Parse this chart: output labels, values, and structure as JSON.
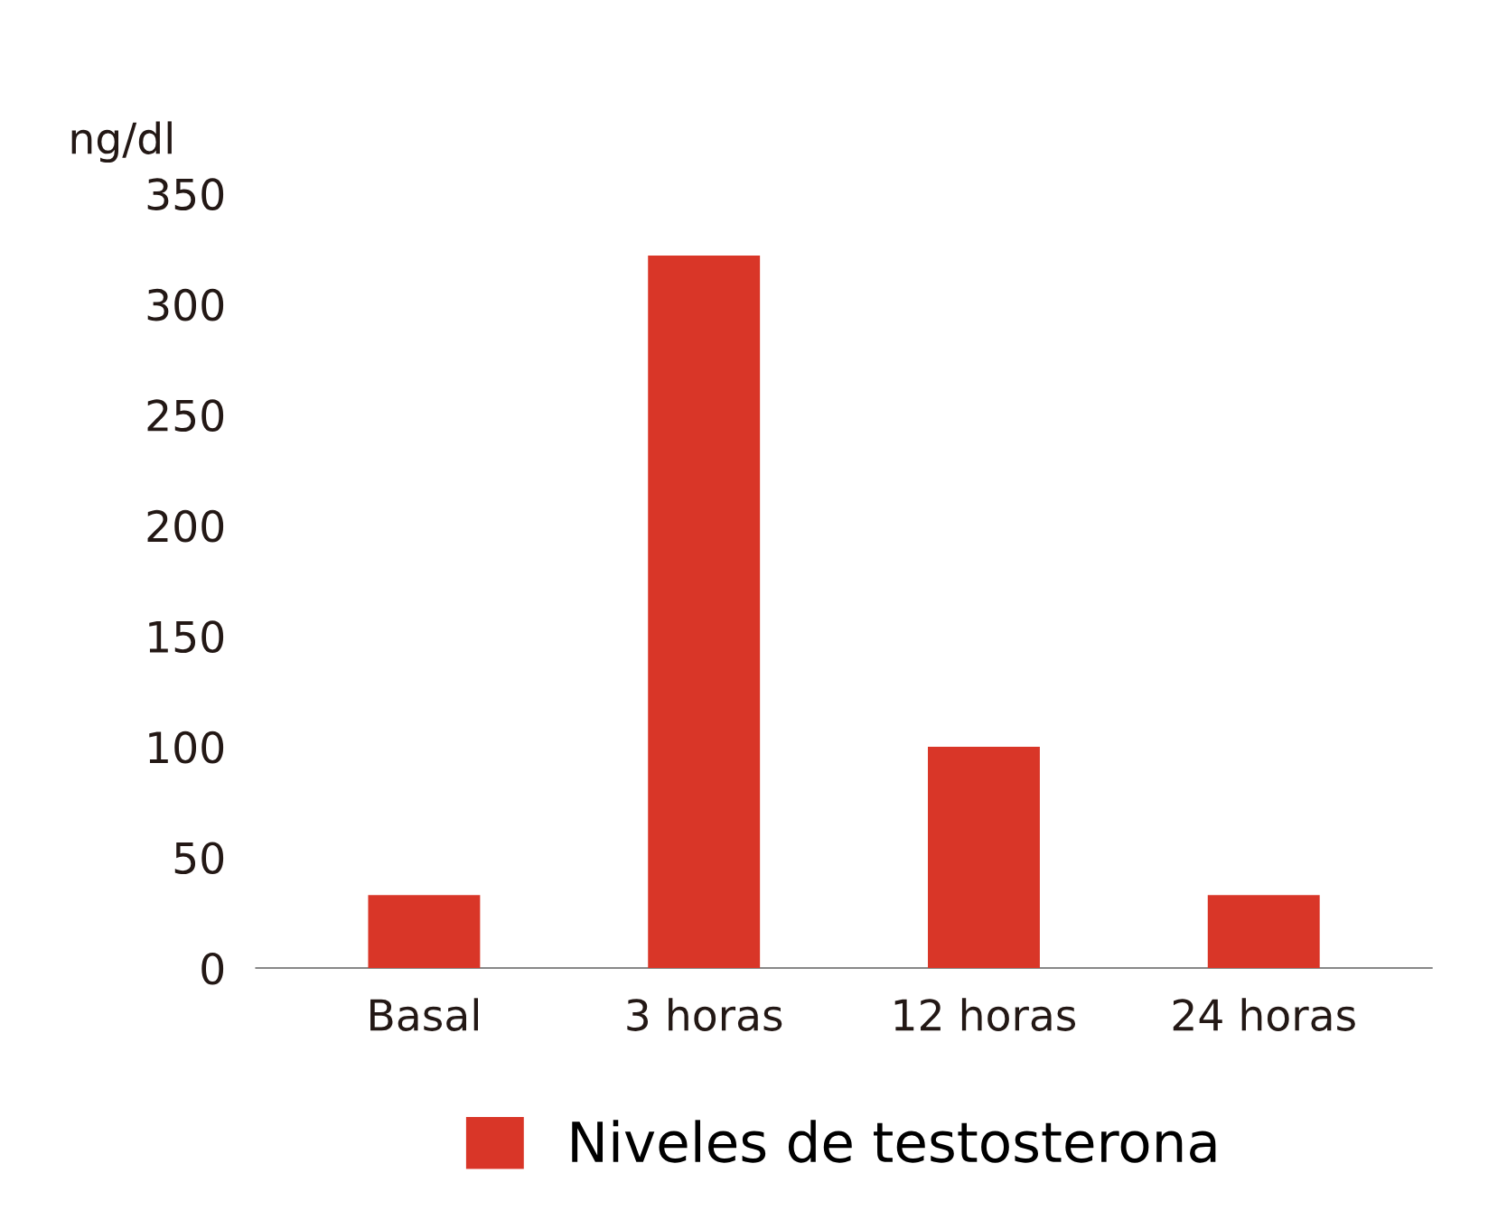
{
  "chart_data": {
    "type": "bar",
    "ylabel": "ng/dl",
    "categories": [
      "Basal",
      "3 horas",
      "12 horas",
      "24 horas"
    ],
    "series": [
      {
        "name": "Niveles de testosterona",
        "color": "#d93628",
        "values": [
          33,
          322,
          100,
          33
        ]
      }
    ],
    "ylim": [
      0,
      350
    ],
    "yticks": [
      0,
      50,
      100,
      150,
      200,
      250,
      300,
      350
    ],
    "grid": false,
    "legend": "bottom"
  }
}
